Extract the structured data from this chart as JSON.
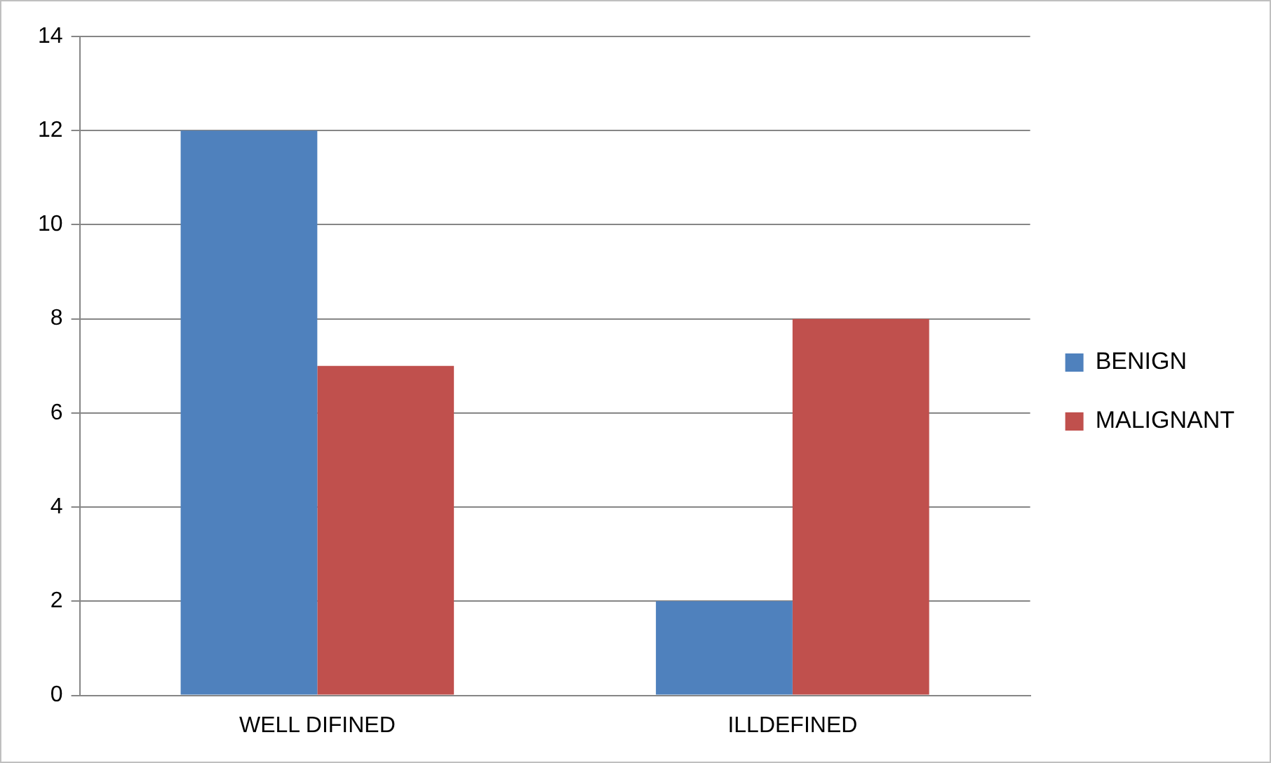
{
  "chart_data": {
    "type": "bar",
    "categories": [
      "WELL DIFINED",
      "ILLDEFINED"
    ],
    "series": [
      {
        "name": "BENIGN",
        "color": "#4f81bd",
        "values": [
          12,
          2
        ]
      },
      {
        "name": "MALIGNANT",
        "color": "#c0504d",
        "values": [
          7,
          8
        ]
      }
    ],
    "ylim": [
      0,
      14
    ],
    "yticks": [
      0,
      2,
      4,
      6,
      8,
      10,
      12,
      14
    ],
    "grid": "y",
    "legend": "right"
  }
}
